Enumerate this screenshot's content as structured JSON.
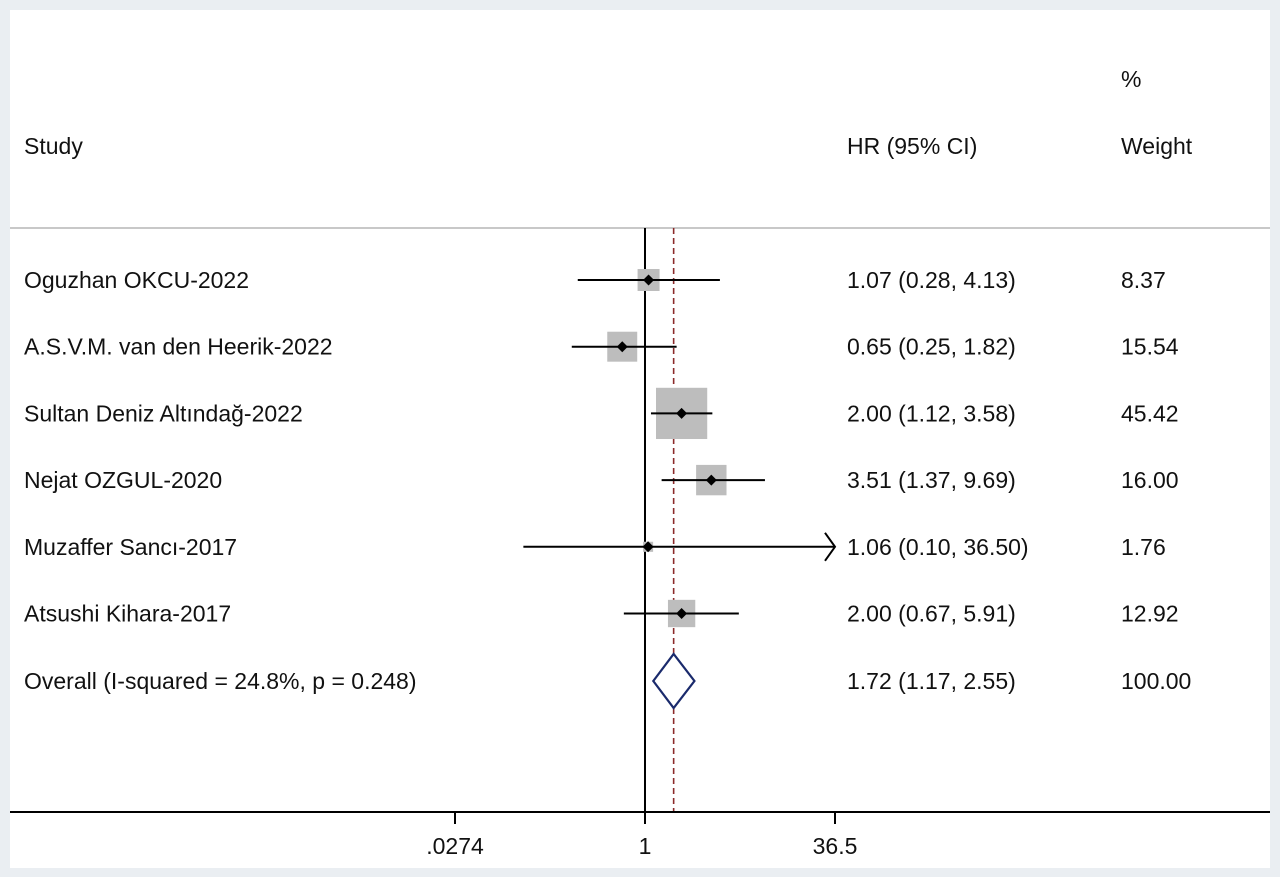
{
  "chart_data": {
    "type": "forest",
    "header": {
      "study_label": "Study",
      "effect_label": "HR (95% CI)",
      "weight_label_top": "%",
      "weight_label": "Weight"
    },
    "x_scale": "log",
    "xlim": [
      0.0274,
      36.5
    ],
    "x_ticks": [
      {
        "value": 0.0274,
        "label": ".0274"
      },
      {
        "value": 1,
        "label": "1"
      },
      {
        "value": 36.5,
        "label": "36.5"
      }
    ],
    "null_line": 1,
    "studies": [
      {
        "name": "Oguzhan OKCU-2022",
        "hr": 1.07,
        "lower": 0.28,
        "upper": 4.13,
        "ci_text": "1.07 (0.28, 4.13)",
        "weight": 8.37,
        "weight_text": "8.37"
      },
      {
        "name": "A.S.V.M. van den Heerik-2022",
        "hr": 0.65,
        "lower": 0.25,
        "upper": 1.82,
        "ci_text": "0.65 (0.25, 1.82)",
        "weight": 15.54,
        "weight_text": "15.54"
      },
      {
        "name": "Sultan Deniz Altındağ-2022",
        "hr": 2.0,
        "lower": 1.12,
        "upper": 3.58,
        "ci_text": "2.00 (1.12, 3.58)",
        "weight": 45.42,
        "weight_text": "45.42"
      },
      {
        "name": "Nejat OZGUL-2020",
        "hr": 3.51,
        "lower": 1.37,
        "upper": 9.69,
        "ci_text": "3.51 (1.37, 9.69)",
        "weight": 16.0,
        "weight_text": "16.00"
      },
      {
        "name": "Muzaffer Sancı-2017",
        "hr": 1.06,
        "lower": 0.1,
        "upper": 36.5,
        "ci_text": "1.06 (0.10, 36.50)",
        "weight": 1.76,
        "weight_text": "1.76"
      },
      {
        "name": "Atsushi Kihara-2017",
        "hr": 2.0,
        "lower": 0.67,
        "upper": 5.91,
        "ci_text": "2.00 (0.67, 5.91)",
        "weight": 12.92,
        "weight_text": "12.92"
      }
    ],
    "overall": {
      "name": "Overall  (I-squared = 24.8%, p = 0.248)",
      "hr": 1.72,
      "lower": 1.17,
      "upper": 2.55,
      "ci_text": "1.72 (1.17, 2.55)",
      "weight": 100.0,
      "weight_text": "100.00"
    },
    "colors": {
      "weight_box": "#bdbdbd",
      "point": "#000000",
      "ci_line": "#000000",
      "overall_diamond": "#1a2a6c",
      "overall_line": "#8b2a2a",
      "axis": "#000000",
      "divider": "#c8c8c8"
    }
  }
}
